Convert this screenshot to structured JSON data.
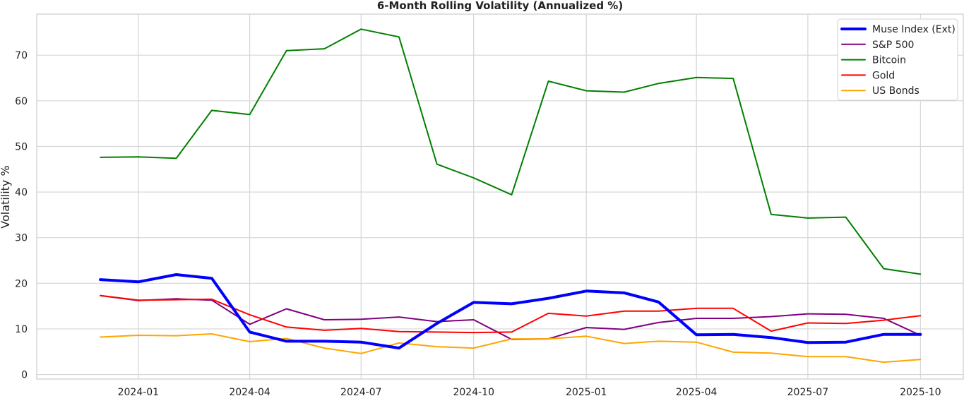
{
  "chart_data": {
    "type": "line",
    "title": "6-Month Rolling Volatility (Annualized %)",
    "xlabel": "",
    "ylabel": "Volatility %",
    "ylim": [
      -1,
      79
    ],
    "yticks": [
      0,
      10,
      20,
      30,
      40,
      50,
      60,
      70
    ],
    "xlim": [
      "2023-10-10",
      "2025-11-05"
    ],
    "xticks": [
      "2024-01",
      "2024-04",
      "2024-07",
      "2024-10",
      "2025-01",
      "2025-04",
      "2025-07",
      "2025-10"
    ],
    "grid": true,
    "legend_position": "top-right",
    "x": [
      "2023-12-01",
      "2024-01-01",
      "2024-02-01",
      "2024-03-01",
      "2024-04-01",
      "2024-05-01",
      "2024-06-01",
      "2024-07-01",
      "2024-08-01",
      "2024-09-01",
      "2024-10-01",
      "2024-11-01",
      "2024-12-01",
      "2025-01-01",
      "2025-02-01",
      "2025-03-01",
      "2025-04-01",
      "2025-05-01",
      "2025-06-01",
      "2025-07-01",
      "2025-08-01",
      "2025-09-01",
      "2025-10-01"
    ],
    "series": [
      {
        "name": "Muse Index (Ext)",
        "color": "#0000ff",
        "width": 4,
        "values": [
          20.8,
          20.3,
          21.9,
          21.1,
          9.3,
          7.3,
          7.3,
          7.1,
          5.8,
          11.2,
          15.8,
          15.5,
          16.7,
          18.3,
          17.9,
          15.9,
          8.7,
          8.8,
          8.1,
          7.0,
          7.1,
          8.8,
          8.8
        ]
      },
      {
        "name": "S&P 500",
        "color": "#800080",
        "width": 2,
        "values": [
          17.3,
          16.2,
          16.6,
          16.3,
          11.0,
          14.4,
          12.0,
          12.1,
          12.6,
          11.6,
          12.0,
          7.7,
          7.8,
          10.3,
          9.9,
          11.4,
          12.3,
          12.3,
          12.7,
          13.3,
          13.2,
          12.3,
          8.6
        ]
      },
      {
        "name": "Bitcoin",
        "color": "#008000",
        "width": 2,
        "values": [
          47.6,
          47.7,
          47.4,
          57.9,
          57.0,
          71.0,
          71.4,
          75.7,
          74.0,
          46.1,
          43.1,
          39.4,
          64.3,
          62.2,
          61.9,
          63.8,
          65.1,
          64.9,
          35.1,
          34.3,
          34.5,
          23.2,
          22.0
        ]
      },
      {
        "name": "Gold",
        "color": "#ff0000",
        "width": 2,
        "values": [
          17.3,
          16.3,
          16.4,
          16.5,
          13.1,
          10.4,
          9.7,
          10.1,
          9.4,
          9.3,
          9.2,
          9.3,
          13.4,
          12.8,
          13.9,
          13.9,
          14.5,
          14.5,
          9.5,
          11.3,
          11.2,
          11.9,
          12.9
        ]
      },
      {
        "name": "US Bonds",
        "color": "#ffa500",
        "width": 2,
        "values": [
          8.2,
          8.6,
          8.5,
          8.9,
          7.2,
          7.9,
          5.8,
          4.6,
          6.9,
          6.1,
          5.8,
          7.8,
          7.8,
          8.4,
          6.8,
          7.3,
          7.1,
          4.9,
          4.7,
          3.9,
          3.9,
          2.7,
          3.3
        ]
      }
    ]
  }
}
